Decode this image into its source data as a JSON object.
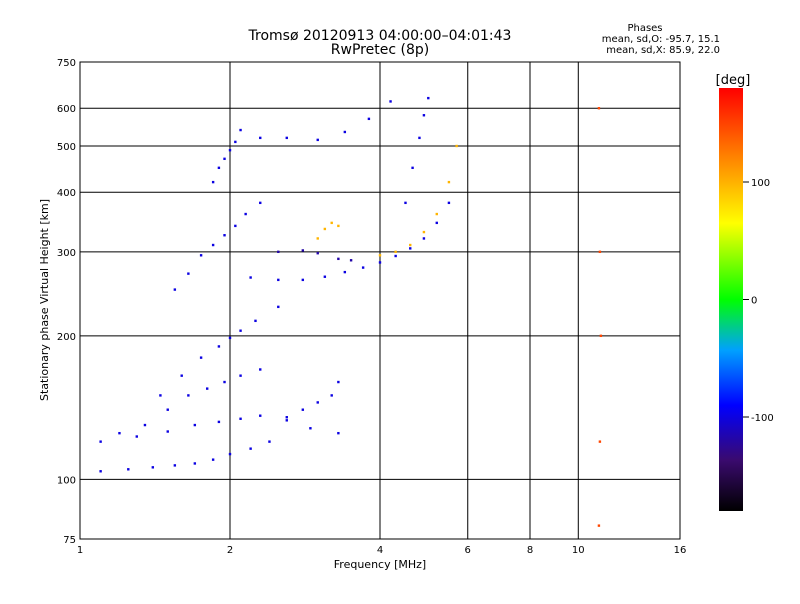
{
  "chart_data": {
    "type": "scatter",
    "title": "Tromsø 20120913 04:00:00–04:01:43",
    "subtitle": "RwPretec (8p)",
    "xlabel": "Frequency [MHz]",
    "ylabel": "Stationary phase Virtual Height [km]",
    "x_scale": "log",
    "y_scale": "log",
    "xlim": [
      1,
      16
    ],
    "ylim": [
      75,
      750
    ],
    "x_ticks": [
      1,
      2,
      4,
      6,
      8,
      10,
      16
    ],
    "x_tick_labels": [
      "1",
      "2",
      "4",
      "6",
      "8",
      "10",
      "16"
    ],
    "y_ticks": [
      75,
      100,
      200,
      300,
      400,
      500,
      600,
      750
    ],
    "y_tick_labels": [
      "75",
      "100",
      "200",
      "300",
      "400",
      "500",
      "600",
      "750"
    ],
    "grid": true,
    "phases_info": {
      "title": "Phases",
      "line_o": "mean, sd,O: -95.7, 15.1",
      "line_x": "mean, sd,X:  85.9, 22.0"
    },
    "colorbar": {
      "label": "[deg]",
      "range": [
        -180,
        180
      ],
      "ticks": [
        100,
        0,
        -100
      ],
      "tick_labels": [
        "100",
        "0",
        "-100"
      ]
    },
    "series": [
      {
        "traces": [
          {
            "x": [
              1.1,
              1.25,
              1.4,
              1.55,
              1.7,
              1.85,
              2.0,
              2.2,
              2.4
            ],
            "y": [
              104,
              105,
              106,
              107,
              108,
              110,
              113,
              116,
              120
            ],
            "phase": -100
          },
          {
            "x": [
              1.1,
              1.3,
              1.5,
              1.7,
              1.9,
              2.1,
              2.3,
              2.6,
              2.9,
              3.3
            ],
            "y": [
              120,
              123,
              126,
              130,
              132,
              134,
              136,
              133,
              128,
              125
            ],
            "phase": -100
          },
          {
            "x": [
              1.2,
              1.35,
              1.5,
              1.65,
              1.8,
              1.95,
              2.1,
              2.3
            ],
            "y": [
              125,
              130,
              140,
              150,
              155,
              160,
              165,
              170
            ],
            "phase": -100
          },
          {
            "x": [
              1.45,
              1.6,
              1.75,
              1.9,
              2.0,
              2.1,
              2.25,
              2.5
            ],
            "y": [
              150,
              165,
              180,
              190,
              198,
              205,
              215,
              230
            ],
            "phase": -100
          },
          {
            "x": [
              1.55,
              1.65,
              1.75,
              1.85,
              1.95,
              2.05,
              2.15,
              2.3
            ],
            "y": [
              250,
              270,
              295,
              310,
              325,
              340,
              360,
              380
            ],
            "phase": -100
          },
          {
            "x": [
              2.2,
              2.5,
              2.8,
              3.1,
              3.4,
              3.7,
              4.0,
              4.3,
              4.6,
              4.9,
              5.2,
              5.5
            ],
            "y": [
              265,
              262,
              262,
              266,
              272,
              278,
              285,
              294,
              305,
              320,
              345,
              380
            ],
            "phase": -100
          },
          {
            "x": [
              2.5,
              2.8,
              3.0,
              3.3,
              3.5
            ],
            "y": [
              300,
              302,
              298,
              290,
              288
            ],
            "phase": -120
          },
          {
            "x": [
              3.0,
              3.1,
              3.2,
              3.3
            ],
            "y": [
              320,
              335,
              345,
              340
            ],
            "phase": 100
          },
          {
            "x": [
              4.0,
              4.3,
              4.6,
              4.9,
              5.2,
              5.5,
              5.7
            ],
            "y": [
              295,
              300,
              310,
              330,
              360,
              420,
              500
            ],
            "phase": 100
          },
          {
            "x": [
              4.5,
              4.65,
              4.8,
              4.9,
              5.0
            ],
            "y": [
              380,
              450,
              520,
              580,
              630
            ],
            "phase": -100
          },
          {
            "x": [
              1.85,
              1.9,
              1.95,
              2.0,
              2.05,
              2.1
            ],
            "y": [
              420,
              450,
              470,
              490,
              510,
              540
            ],
            "phase": -100
          },
          {
            "x": [
              2.3,
              2.6,
              3.0,
              3.4,
              3.8,
              4.2
            ],
            "y": [
              520,
              520,
              515,
              535,
              570,
              620
            ],
            "phase": -100
          },
          {
            "x": [
              2.6,
              2.8,
              3.0,
              3.2,
              3.3
            ],
            "y": [
              135,
              140,
              145,
              150,
              160
            ],
            "phase": -100
          },
          {
            "x": [
              11.0,
              11.05,
              11.1,
              11.05,
              11.0
            ],
            "y": [
              80,
              120,
              200,
              300,
              600
            ],
            "phase": 150
          }
        ]
      }
    ]
  }
}
